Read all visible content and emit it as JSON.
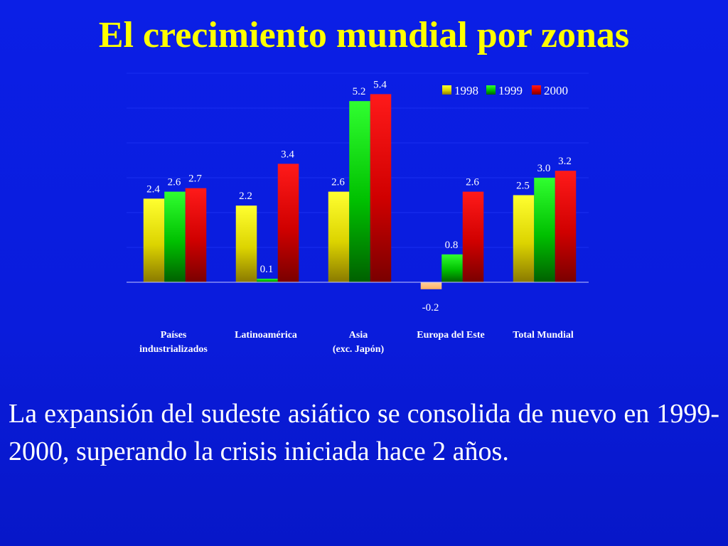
{
  "title": "El crecimiento mundial por zonas",
  "caption": "La expansión del sudeste asiático se consolida de nuevo en 1999-2000, superando la crisis iniciada hace 2 años.",
  "colors": {
    "background": "#0a1cdc",
    "title": "#ffff00",
    "series_1998": "#e8e000",
    "series_1999": "#00c800",
    "series_2000": "#e00000"
  },
  "chart_data": {
    "type": "bar",
    "categories": [
      "Países\nindustrializados",
      "Latinoamérica",
      "Asia\n(exc. Japón)",
      "Europa del Este",
      "Total Mundial"
    ],
    "series": [
      {
        "name": "1998",
        "values": [
          2.4,
          2.2,
          2.6,
          -0.2,
          2.5
        ],
        "labels": [
          "2.4",
          "2.2",
          "2.6",
          "-0.2",
          "2.5"
        ]
      },
      {
        "name": "1999",
        "values": [
          2.6,
          0.1,
          5.2,
          0.8,
          3.0
        ],
        "labels": [
          "2.6",
          "0.1",
          "5.2",
          "0.8",
          "3.0"
        ]
      },
      {
        "name": "2000",
        "values": [
          2.7,
          3.4,
          5.4,
          2.6,
          3.2
        ],
        "labels": [
          "2.7",
          "3.4",
          "5.4",
          "2.6",
          "3.2"
        ]
      }
    ],
    "title": "",
    "xlabel": "",
    "ylabel": "",
    "ylim": [
      -0.5,
      6
    ],
    "grid": true,
    "legend": "top-right"
  }
}
